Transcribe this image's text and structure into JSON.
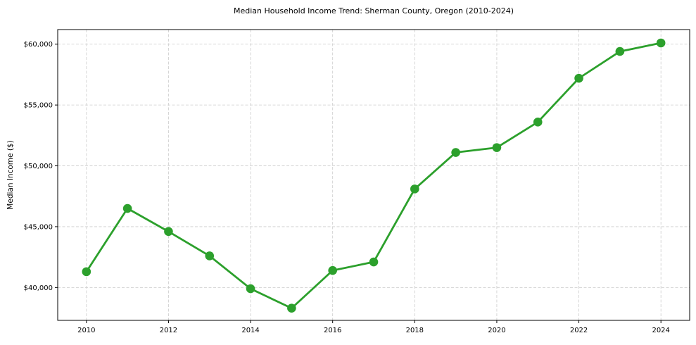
{
  "chart_data": {
    "type": "line",
    "title": "Median Household Income Trend: Sherman County, Oregon (2010-2024)",
    "xlabel": "",
    "ylabel": "Median Income ($)",
    "x": [
      2010,
      2011,
      2012,
      2013,
      2014,
      2015,
      2016,
      2017,
      2018,
      2019,
      2020,
      2021,
      2022,
      2023,
      2024
    ],
    "series": [
      {
        "name": "Median Household Income",
        "values": [
          41300,
          46500,
          44600,
          42600,
          39900,
          38300,
          41400,
          42100,
          48100,
          51100,
          51500,
          53600,
          57200,
          59400,
          60100
        ],
        "color": "#2ca02c",
        "marker": "circle"
      }
    ],
    "xticks": {
      "values": [
        2010,
        2012,
        2014,
        2016,
        2018,
        2020,
        2022,
        2024
      ],
      "labels": [
        "2010",
        "2012",
        "2014",
        "2016",
        "2018",
        "2020",
        "2022",
        "2024"
      ]
    },
    "yticks": {
      "values": [
        40000,
        45000,
        50000,
        55000,
        60000
      ],
      "labels": [
        "$40,000",
        "$45,000",
        "$50,000",
        "$55,000",
        "$60,000"
      ]
    },
    "xlim": [
      2009.3,
      2024.7
    ],
    "ylim": [
      37300,
      61200
    ],
    "grid": "dashed",
    "grid_color": "#cccccc",
    "spine_color": "#000000",
    "background_color": "#ffffff",
    "legend_position": "none"
  }
}
